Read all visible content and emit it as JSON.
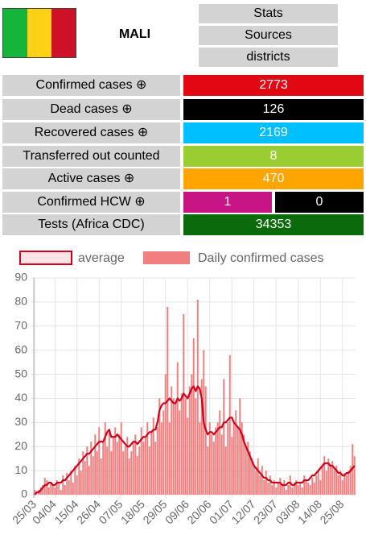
{
  "header": {
    "country": "MALI",
    "buttons": [
      "Stats",
      "Sources",
      "districts"
    ]
  },
  "table": {
    "rows": [
      {
        "label": "Confirmed cases ⊕",
        "values": [
          "2773"
        ],
        "colors": [
          "#e30613"
        ]
      },
      {
        "label": "Dead cases ⊕",
        "values": [
          "126"
        ],
        "colors": [
          "#000000"
        ]
      },
      {
        "label": "Recovered cases ⊕",
        "values": [
          "2169"
        ],
        "colors": [
          "#00bfff"
        ]
      },
      {
        "label": "Transferred out counted",
        "values": [
          "8"
        ],
        "colors": [
          "#9acd32"
        ]
      },
      {
        "label": "Active cases ⊕",
        "values": [
          "470"
        ],
        "colors": [
          "#ffa500"
        ]
      },
      {
        "label": "Confirmed HCW ⊕",
        "values": [
          "1",
          "0"
        ],
        "colors": [
          "#c71585",
          "#000000"
        ]
      },
      {
        "label": "Tests (Africa CDC)",
        "values": [
          "34353"
        ],
        "colors": [
          "#0a6b0a"
        ]
      }
    ]
  },
  "chart_data": {
    "type": "bar",
    "categories": [
      "25/03",
      null,
      null,
      null,
      null,
      null,
      null,
      null,
      null,
      null,
      "04/04",
      null,
      null,
      null,
      null,
      null,
      null,
      null,
      null,
      null,
      null,
      "15/04",
      null,
      null,
      null,
      null,
      null,
      null,
      null,
      null,
      null,
      null,
      "26/04",
      null,
      null,
      null,
      null,
      null,
      null,
      null,
      null,
      null,
      null,
      "07/05",
      null,
      null,
      null,
      null,
      null,
      null,
      null,
      null,
      null,
      null,
      "18/05",
      null,
      null,
      null,
      null,
      null,
      null,
      null,
      null,
      null,
      null,
      "29/05",
      null,
      null,
      null,
      null,
      null,
      null,
      null,
      null,
      null,
      null,
      "09/06",
      null,
      null,
      null,
      null,
      null,
      null,
      null,
      null,
      null,
      null,
      "20/06",
      null,
      null,
      null,
      null,
      null,
      null,
      null,
      null,
      null,
      null,
      "01/07",
      null,
      null,
      null,
      null,
      null,
      null,
      null,
      null,
      null,
      null,
      "12/07",
      null,
      null,
      null,
      null,
      null,
      null,
      null,
      null,
      null,
      null,
      "23/07",
      null,
      null,
      null,
      null,
      null,
      null,
      null,
      null,
      null,
      null,
      "03/08",
      null,
      null,
      null,
      null,
      null,
      null,
      null,
      null,
      null,
      null,
      "14/08",
      null,
      null,
      null,
      null,
      null,
      null,
      null,
      null,
      null,
      null,
      "25/08",
      null,
      null,
      null,
      null,
      null,
      null
    ],
    "series": [
      {
        "name": "average",
        "type": "line",
        "color": "#d0021b",
        "fill": "#fbe3e6",
        "values": [
          0,
          1,
          1,
          2,
          3,
          4,
          4,
          5,
          5,
          4,
          4,
          5,
          5,
          5,
          6,
          6,
          7,
          8,
          9,
          10,
          11,
          12,
          13,
          14,
          15,
          16,
          17,
          17,
          18,
          19,
          20,
          21,
          22,
          22,
          22,
          24,
          26,
          27,
          24,
          24,
          24,
          25,
          24,
          23,
          22,
          21,
          20,
          20,
          21,
          22,
          22,
          21,
          22,
          23,
          24,
          24,
          25,
          26,
          26,
          27,
          27,
          30,
          35,
          37,
          38,
          38,
          39,
          40,
          39,
          38,
          38,
          40,
          39,
          40,
          42,
          41,
          40,
          42,
          44,
          45,
          43,
          45,
          44,
          40,
          30,
          27,
          25,
          26,
          26,
          25,
          26,
          27,
          28,
          28,
          30,
          30,
          31,
          32,
          32,
          30,
          29,
          28,
          27,
          25,
          22,
          20,
          18,
          16,
          14,
          12,
          11,
          10,
          9,
          8,
          7,
          7,
          6,
          6,
          5,
          5,
          5,
          5,
          5,
          4,
          4,
          4,
          5,
          5,
          4,
          4,
          5,
          5,
          5,
          5,
          6,
          6,
          6,
          7,
          8,
          8,
          9,
          10,
          11,
          12,
          13,
          13,
          13,
          12,
          12,
          11,
          10,
          9,
          9,
          8,
          8,
          9,
          9,
          10,
          11,
          12
        ]
      },
      {
        "name": "Daily confirmed cases",
        "type": "bar",
        "color": "#f08080",
        "values": [
          2,
          0,
          2,
          3,
          4,
          7,
          6,
          3,
          5,
          4,
          3,
          6,
          5,
          2,
          8,
          4,
          9,
          6,
          10,
          5,
          12,
          8,
          15,
          10,
          18,
          14,
          20,
          12,
          22,
          16,
          25,
          18,
          28,
          15,
          22,
          30,
          20,
          26,
          18,
          24,
          28,
          22,
          25,
          30,
          18,
          20,
          24,
          15,
          18,
          22,
          25,
          16,
          20,
          28,
          22,
          24,
          30,
          20,
          26,
          32,
          22,
          28,
          40,
          30,
          35,
          50,
          78,
          30,
          45,
          40,
          38,
          55,
          35,
          42,
          75,
          40,
          32,
          45,
          50,
          65,
          40,
          81,
          30,
          48,
          60,
          45,
          20,
          30,
          25,
          22,
          28,
          30,
          35,
          25,
          48,
          20,
          30,
          58,
          24,
          30,
          35,
          28,
          40,
          30,
          25,
          20,
          22,
          18,
          15,
          12,
          10,
          15,
          8,
          12,
          6,
          10,
          5,
          8,
          4,
          6,
          3,
          5,
          7,
          4,
          6,
          2,
          4,
          8,
          3,
          5,
          6,
          4,
          5,
          3,
          8,
          6,
          5,
          4,
          7,
          5,
          8,
          10,
          6,
          12,
          16,
          10,
          15,
          12,
          14,
          10,
          12,
          8,
          10,
          6,
          9,
          8,
          10,
          12,
          21,
          16
        ]
      }
    ],
    "ylim": [
      0,
      90
    ],
    "yticks": [
      0,
      10,
      20,
      30,
      40,
      50,
      60,
      70,
      80,
      90
    ],
    "grid": true
  }
}
